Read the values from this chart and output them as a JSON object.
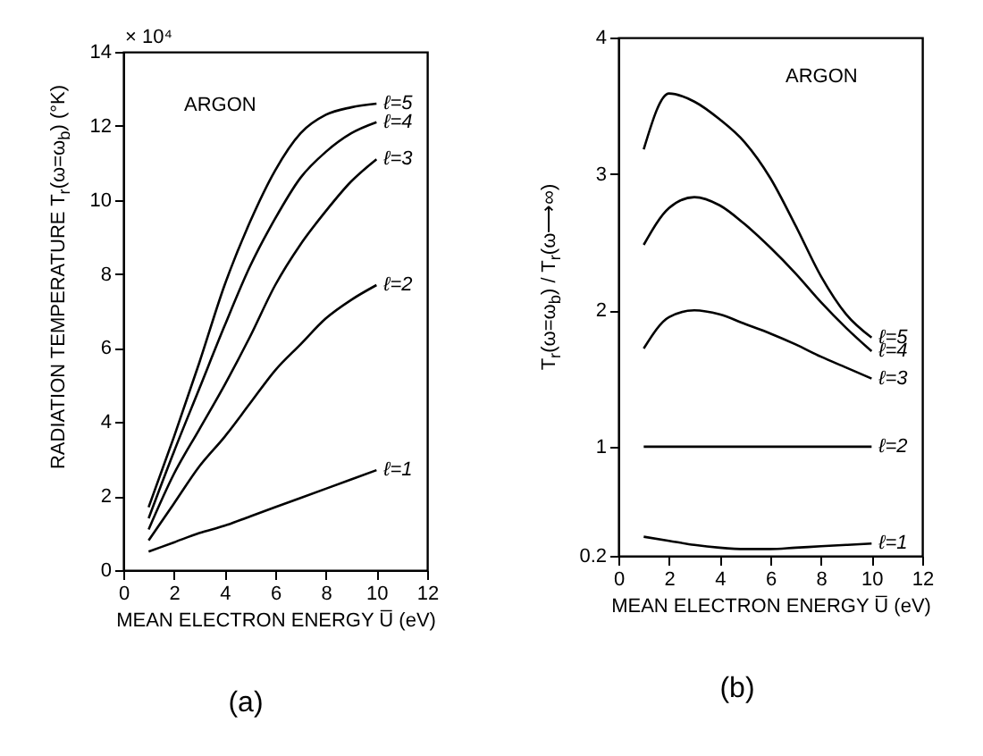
{
  "chart_data": [
    {
      "type": "line",
      "xlabel": "MEAN ELECTRON ENERGY U̅ (eV)",
      "ylabel": "RADIATION TEMPERATURE T$_{r}$(ω=ω$_{b}$) (°K)",
      "annotations": [
        "ARGON",
        "(a)",
        "× 10⁴"
      ],
      "legend": false,
      "grid": false,
      "line_style": "solid",
      "x": [
        1,
        2,
        3,
        4,
        5,
        6,
        7,
        8,
        9,
        10
      ],
      "xlim": [
        0,
        12
      ],
      "xticks": [
        0,
        2,
        4,
        6,
        8,
        10,
        12
      ],
      "ylim": [
        0,
        14
      ],
      "yticks": [
        0,
        2,
        4,
        6,
        8,
        10,
        12,
        14
      ],
      "series": [
        {
          "name": "ℓ=5",
          "color": "#000000",
          "values": [
            1.7,
            3.6,
            5.6,
            7.7,
            9.4,
            10.8,
            11.8,
            12.3,
            12.5,
            12.6
          ]
        },
        {
          "name": "ℓ=4",
          "color": "#000000",
          "values": [
            1.4,
            3.2,
            4.9,
            6.6,
            8.2,
            9.5,
            10.6,
            11.3,
            11.8,
            12.1
          ]
        },
        {
          "name": "ℓ=3",
          "color": "#000000",
          "values": [
            1.1,
            2.6,
            3.8,
            5.0,
            6.3,
            7.7,
            8.8,
            9.7,
            10.5,
            11.1
          ]
        },
        {
          "name": "ℓ=2",
          "color": "#000000",
          "values": [
            0.8,
            1.8,
            2.8,
            3.6,
            4.5,
            5.4,
            6.1,
            6.8,
            7.3,
            7.7
          ]
        },
        {
          "name": "ℓ=1",
          "color": "#000000",
          "values": [
            0.5,
            0.75,
            1.0,
            1.2,
            1.45,
            1.7,
            1.95,
            2.2,
            2.45,
            2.7
          ]
        }
      ]
    },
    {
      "type": "line",
      "xlabel": "MEAN ELECTRON ENERGY U̅ (eV)",
      "ylabel": "T$_{r}$(ω=ω$_{b}$) / T$_{r}$(ω⟶∞)",
      "annotations": [
        "ARGON",
        "(b)"
      ],
      "legend": false,
      "grid": false,
      "line_style": "solid",
      "x": [
        1,
        2,
        3,
        4,
        5,
        6,
        7,
        8,
        9,
        10
      ],
      "xlim": [
        0,
        12
      ],
      "xticks": [
        0,
        2,
        4,
        6,
        8,
        10,
        12
      ],
      "ylim": [
        0.2,
        4
      ],
      "yticks": [
        0.2,
        1,
        2,
        3,
        4
      ],
      "series": [
        {
          "name": "ℓ=5",
          "color": "#000000",
          "values": [
            3.18,
            3.59,
            3.53,
            3.4,
            3.23,
            2.97,
            2.62,
            2.25,
            1.97,
            1.8
          ]
        },
        {
          "name": "ℓ=4",
          "color": "#000000",
          "values": [
            2.48,
            2.75,
            2.83,
            2.77,
            2.63,
            2.46,
            2.27,
            2.06,
            1.87,
            1.7
          ]
        },
        {
          "name": "ℓ=3",
          "color": "#000000",
          "values": [
            1.72,
            1.95,
            2.0,
            1.97,
            1.9,
            1.83,
            1.75,
            1.66,
            1.58,
            1.5
          ]
        },
        {
          "name": "ℓ=2",
          "color": "#000000",
          "values": [
            1,
            1,
            1,
            1,
            1,
            1,
            1,
            1,
            1,
            1
          ]
        },
        {
          "name": "ℓ=1",
          "color": "#000000",
          "values": [
            0.34,
            0.31,
            0.28,
            0.26,
            0.25,
            0.25,
            0.26,
            0.27,
            0.28,
            0.29
          ]
        }
      ]
    }
  ]
}
